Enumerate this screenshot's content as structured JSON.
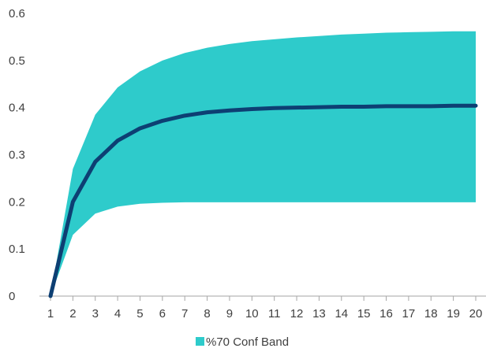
{
  "chart_data": {
    "type": "area",
    "x": [
      1,
      2,
      3,
      4,
      5,
      6,
      7,
      8,
      9,
      10,
      11,
      12,
      13,
      14,
      15,
      16,
      17,
      18,
      19,
      20
    ],
    "series": [
      {
        "name": "",
        "values": [
          0,
          0.2,
          0.285,
          0.33,
          0.356,
          0.372,
          0.383,
          0.39,
          0.394,
          0.397,
          0.399,
          0.4,
          0.401,
          0.402,
          0.402,
          0.403,
          0.403,
          0.403,
          0.404,
          0.404
        ],
        "color": "#0d3f73"
      }
    ],
    "band": {
      "name": "%70 Conf Band",
      "upper": [
        0,
        0.27,
        0.385,
        0.443,
        0.477,
        0.5,
        0.516,
        0.527,
        0.535,
        0.541,
        0.545,
        0.549,
        0.552,
        0.555,
        0.557,
        0.559,
        0.56,
        0.561,
        0.562,
        0.562
      ],
      "lower": [
        0,
        0.13,
        0.175,
        0.19,
        0.196,
        0.198,
        0.199,
        0.199,
        0.199,
        0.199,
        0.199,
        0.199,
        0.199,
        0.199,
        0.199,
        0.199,
        0.199,
        0.199,
        0.199,
        0.199
      ],
      "color": "#2ecbcb"
    },
    "x_ticks": [
      "1",
      "2",
      "3",
      "4",
      "5",
      "6",
      "7",
      "8",
      "9",
      "10",
      "11",
      "12",
      "13",
      "14",
      "15",
      "16",
      "17",
      "18",
      "19",
      "20"
    ],
    "y_ticks": [
      "0",
      "0.1",
      "0.2",
      "0.3",
      "0.4",
      "0.5",
      "0.6"
    ],
    "y_tick_values": [
      0,
      0.1,
      0.2,
      0.3,
      0.4,
      0.5,
      0.6
    ],
    "ylim": [
      0,
      0.6
    ],
    "title": "",
    "xlabel": "",
    "ylabel": "",
    "grid": false,
    "legend_position": "bottom",
    "legend": [
      {
        "label": "%70 Conf Band",
        "color": "#2ecbcb"
      }
    ],
    "axis_color": "#a6a6a6",
    "text_color": "#404040"
  }
}
